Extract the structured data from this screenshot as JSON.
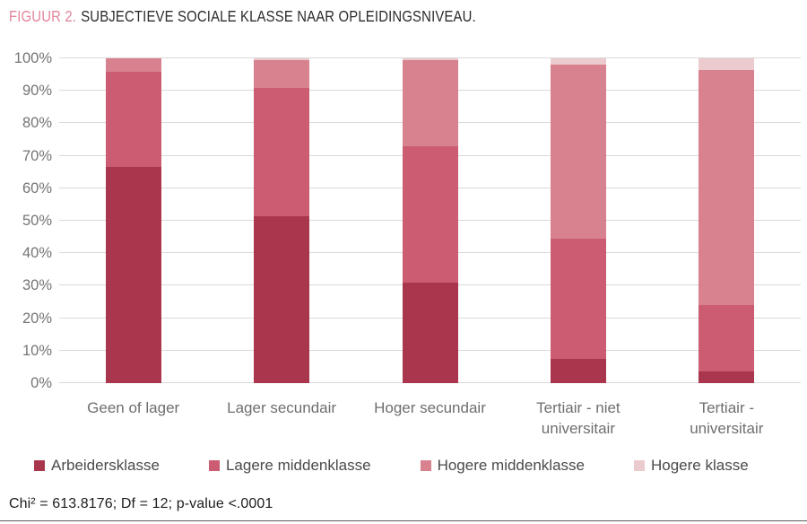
{
  "figure": {
    "title_prefix": "FIGUUR 2.",
    "title_text": "SUBJECTIEVE SOCIALE KLASSE NAAR OPLEIDINGSNIVEAU.",
    "footer_stats": "Chi² = 613.8176; Df = 12; p-value <.0001"
  },
  "colors": {
    "title_prefix": "#E2859B",
    "title_text": "#2B2B2B",
    "gridline": "#D9D9D9",
    "y_axis_text": "#747474",
    "category_text": "#6E6E6E",
    "legend_text": "#4A4A4A",
    "footer_text": "#1E1E1E",
    "bottom_rule": "#5A5A5A"
  },
  "chart_data": {
    "type": "bar",
    "stacked": true,
    "unit": "%",
    "title": "FIGUUR 2. SUBJECTIEVE SOCIALE KLASSE NAAR OPLEIDINGSNIVEAU.",
    "categories": [
      "Geen of lager",
      "Lager secundair",
      "Hoger secundair",
      "Tertiair - niet\nuniversitair",
      "Tertiair -\nuniversitair"
    ],
    "series": [
      {
        "name": "Arbeidersklasse",
        "color": "#A9364D",
        "values": [
          66.5,
          51.5,
          31.0,
          7.5,
          3.5
        ]
      },
      {
        "name": "Lagere middenklasse",
        "color": "#CB5C71",
        "values": [
          29.5,
          39.5,
          42.0,
          37.0,
          20.5
        ]
      },
      {
        "name": "Hogere middenklasse",
        "color": "#D7828E",
        "values": [
          4.0,
          8.5,
          26.5,
          53.5,
          72.5
        ]
      },
      {
        "name": "Hogere klasse",
        "color": "#ECCBCF",
        "values": [
          0.0,
          0.5,
          0.5,
          2.0,
          3.5
        ]
      }
    ],
    "y_ticks": [
      "0%",
      "10%",
      "20%",
      "30%",
      "40%",
      "50%",
      "60%",
      "70%",
      "80%",
      "90%",
      "100%"
    ],
    "ylim": [
      0,
      100
    ],
    "grid": true,
    "legend_position": "bottom",
    "annotation": "Chi² = 613.8176; Df = 12; p-value <.0001"
  }
}
